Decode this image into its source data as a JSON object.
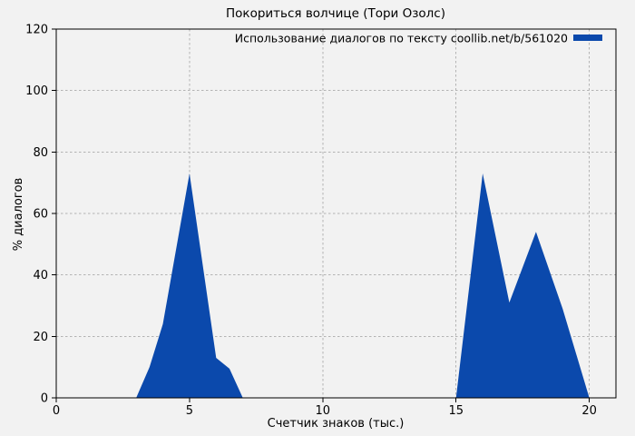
{
  "page": {
    "background_color": "#f2f2f2",
    "text_color": "#000000"
  },
  "chart_data": {
    "type": "area",
    "title": "Покориться волчице (Тори Озолс)",
    "xlabel": "Счетчик знаков (тыс.)",
    "ylabel": "% диалогов",
    "legend": "Использование диалогов по тексту coollib.net/b/561020",
    "series_color": "#0b49ac",
    "grid": true,
    "grid_color": "#b3b3b3",
    "border_color": "#000000",
    "xlim": [
      0,
      21
    ],
    "ylim": [
      0,
      120
    ],
    "xticks": [
      "0",
      "5",
      "10",
      "15",
      "20"
    ],
    "xtick_values": [
      0,
      5,
      10,
      15,
      20
    ],
    "yticks": [
      "0",
      "20",
      "40",
      "60",
      "80",
      "100",
      "120"
    ],
    "ytick_values": [
      0,
      20,
      40,
      60,
      80,
      100,
      120
    ],
    "series": [
      {
        "name": "Использование диалогов по тексту coollib.net/b/561020",
        "points": [
          [
            3,
            0
          ],
          [
            3.5,
            10
          ],
          [
            4,
            24
          ],
          [
            5,
            73
          ],
          [
            6,
            13
          ],
          [
            6.5,
            9.5
          ],
          [
            7,
            0
          ],
          [
            15,
            0
          ],
          [
            16,
            73
          ],
          [
            17,
            31
          ],
          [
            18,
            54
          ],
          [
            19,
            29
          ],
          [
            20,
            0
          ]
        ]
      }
    ]
  }
}
